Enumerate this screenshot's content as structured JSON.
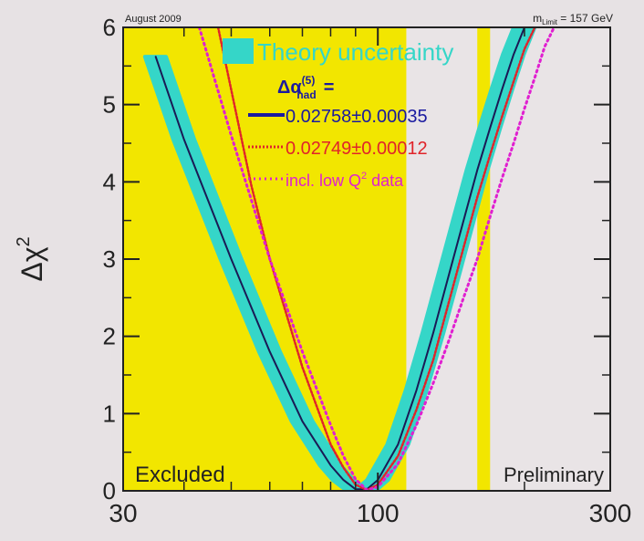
{
  "chart_data": {
    "type": "line",
    "title": "",
    "header_left": "August 2009",
    "header_right": "m",
    "header_right_sub": "Limit",
    "header_right_tail": " = 157 GeV",
    "xlabel": "",
    "xscale": "log",
    "ylabel": "Δχ",
    "ylabel_sup": "2",
    "xlim": [
      30,
      300
    ],
    "ylim": [
      0,
      6
    ],
    "x_ticks": [
      30,
      100,
      300
    ],
    "x_tick_labels": [
      "30",
      "100",
      "300"
    ],
    "y_ticks": [
      0,
      1,
      2,
      3,
      4,
      5,
      6
    ],
    "y_tick_labels": [
      "0",
      "1",
      "2",
      "3",
      "4",
      "5",
      "6"
    ],
    "grid": false,
    "excluded_regions": [
      {
        "x": [
          30,
          114.4
        ]
      },
      {
        "x": [
          160,
          170
        ]
      }
    ],
    "annotations": {
      "excluded_label": "Excluded",
      "preliminary_label": "Preliminary"
    },
    "legend": {
      "placement": "top-right",
      "band_label": "Theory uncertainty",
      "alpha_base": "Δα",
      "alpha_sup": "(5)",
      "alpha_sub": "had",
      "alpha_eq": "=",
      "entries": [
        {
          "label": "0.02758±0.00035",
          "color": "#1a1aa0",
          "style": "solid"
        },
        {
          "label": "0.02749±0.00012",
          "color": "#e0242a",
          "style": "dotted"
        },
        {
          "label": "incl. low Q",
          "label_sup": "2",
          "label_tail": " data",
          "color": "#e020d0",
          "style": "dotted"
        }
      ]
    },
    "colors": {
      "background": "#e7e2e4",
      "excluded": "#f2e600",
      "band": "#35d6c8",
      "axis": "#222222"
    },
    "series": [
      {
        "name": "0.02758±0.00035",
        "x": [
          35.0,
          40,
          50,
          60,
          70,
          80,
          85,
          90,
          95,
          100,
          110,
          120,
          130,
          140,
          150,
          160,
          170,
          180,
          190,
          200
        ],
        "y": [
          5.62,
          4.55,
          3.0,
          1.8,
          0.9,
          0.33,
          0.14,
          0.02,
          0.02,
          0.14,
          0.6,
          1.3,
          2.05,
          2.8,
          3.5,
          4.15,
          4.7,
          5.2,
          5.65,
          6.0
        ]
      },
      {
        "name": "0.02749±0.00012",
        "x": [
          47,
          55,
          60,
          70,
          80,
          85,
          90,
          95,
          100,
          110,
          120,
          130,
          140,
          150,
          160,
          170,
          180,
          190,
          200,
          210
        ],
        "y": [
          6.0,
          3.95,
          3.0,
          1.6,
          0.6,
          0.3,
          0.08,
          0.01,
          0.08,
          0.45,
          1.05,
          1.7,
          2.45,
          3.15,
          3.8,
          4.35,
          4.85,
          5.3,
          5.72,
          6.0
        ]
      },
      {
        "name": "incl. low Q2 data",
        "x": [
          43,
          50,
          60,
          70,
          80,
          85,
          90,
          95,
          100,
          110,
          120,
          130,
          140,
          150,
          160,
          170,
          180,
          190,
          200,
          210,
          220,
          230
        ],
        "y": [
          6.0,
          4.6,
          3.0,
          1.8,
          0.85,
          0.45,
          0.15,
          0.01,
          0.05,
          0.35,
          0.85,
          1.4,
          1.95,
          2.5,
          3.0,
          3.55,
          4.05,
          4.5,
          4.95,
          5.35,
          5.75,
          6.0
        ]
      }
    ],
    "band": {
      "half_width_x_factor": 0.05
    }
  }
}
